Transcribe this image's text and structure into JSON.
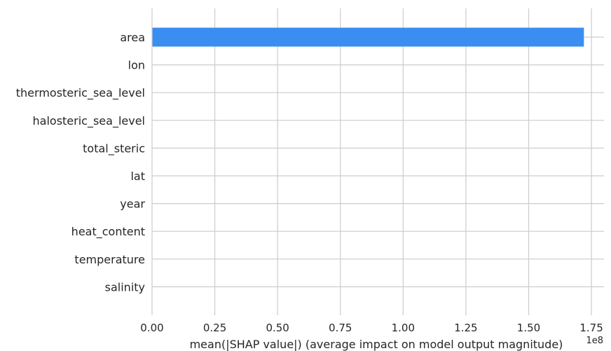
{
  "chart_data": {
    "type": "bar",
    "orientation": "horizontal",
    "categories": [
      "area",
      "lon",
      "thermosteric_sea_level",
      "halosteric_sea_level",
      "total_steric",
      "lat",
      "year",
      "heat_content",
      "temperature",
      "salinity"
    ],
    "values": [
      172000000,
      0,
      0,
      0,
      0,
      0,
      0,
      0,
      0,
      0
    ],
    "xlabel": "mean(|SHAP value|) (average impact on model output magnitude)",
    "x_offset_label": "1e8",
    "xticks": [
      0,
      25000000,
      50000000,
      75000000,
      100000000,
      125000000,
      150000000,
      175000000
    ],
    "xtick_labels": [
      "0.00",
      "0.25",
      "0.50",
      "0.75",
      "1.00",
      "1.25",
      "1.50",
      "1.75"
    ],
    "xlim": [
      0,
      180000000
    ],
    "grid": true,
    "bar_color": "#3a8ef2",
    "grid_color": "#cccccc"
  }
}
